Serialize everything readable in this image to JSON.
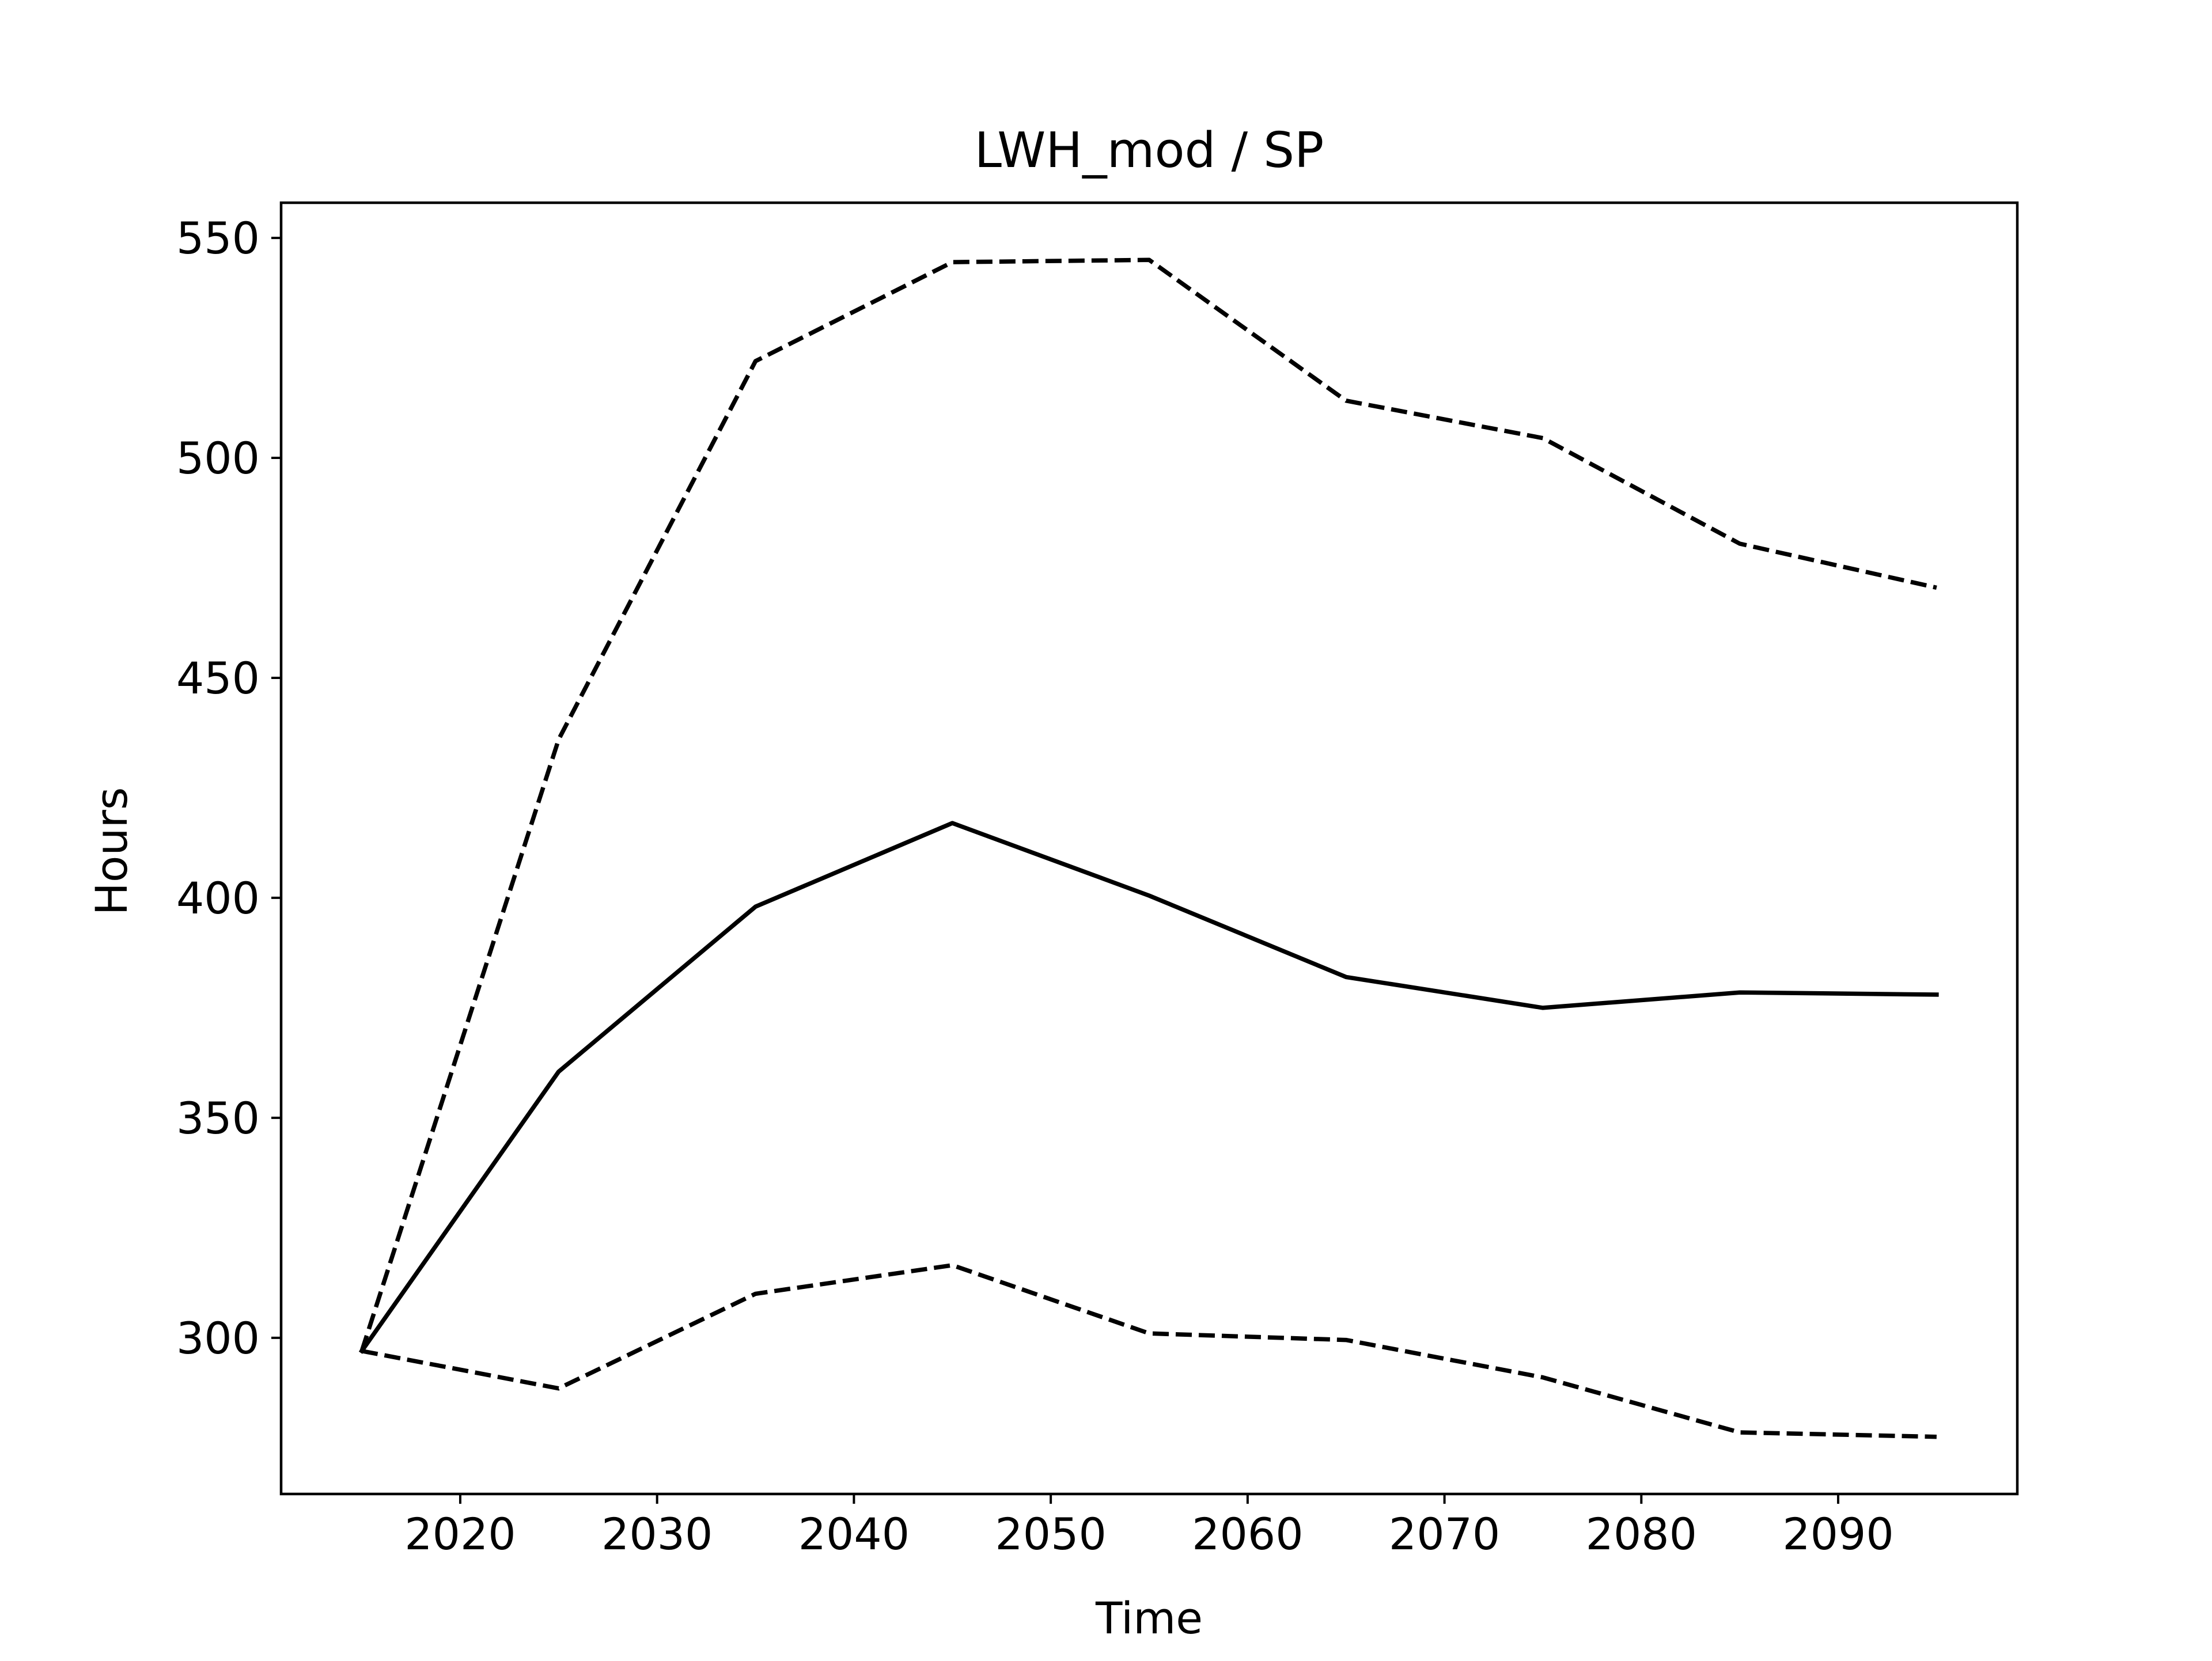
{
  "chart_data": {
    "type": "line",
    "title": "LWH_mod / SP",
    "xlabel": "Time",
    "ylabel": "Hours",
    "x": [
      2015,
      2025,
      2035,
      2045,
      2055,
      2065,
      2075,
      2085,
      2095
    ],
    "xlim": [
      2010.9,
      2099.1
    ],
    "ylim": [
      264.5,
      558
    ],
    "xticks": [
      2020,
      2030,
      2040,
      2050,
      2060,
      2070,
      2080,
      2090
    ],
    "yticks": [
      300,
      350,
      400,
      450,
      500,
      550
    ],
    "grid": false,
    "series": [
      {
        "style": "solid",
        "color": "#000000",
        "values": [
          297,
          360.5,
          398,
          417,
          400.5,
          382,
          375,
          378.5,
          378
        ]
      },
      {
        "style": "dashed",
        "color": "#000000",
        "values": [
          297,
          436,
          522,
          544.5,
          545,
          513,
          504.5,
          480.5,
          470.5
        ]
      },
      {
        "style": "dashed",
        "color": "#000000",
        "values": [
          297,
          288.5,
          310,
          316.5,
          301,
          299.5,
          291,
          278.5,
          277.5
        ]
      }
    ]
  }
}
